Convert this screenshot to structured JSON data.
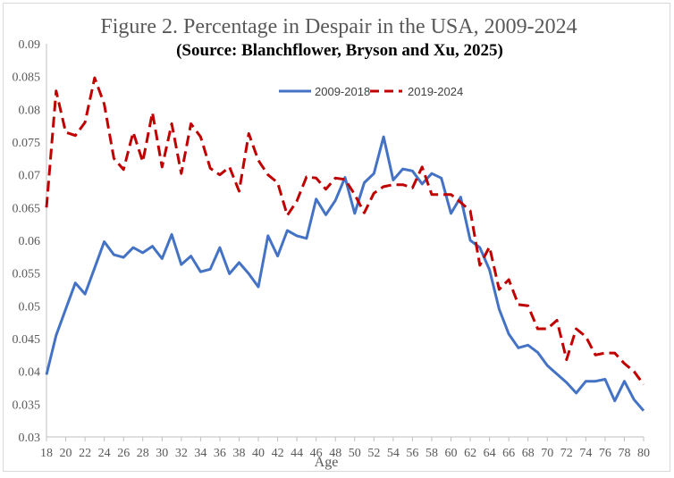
{
  "chart_data": {
    "type": "line",
    "title": "Figure 2.   Percentage in Despair in the USA, 2009-2024",
    "subtitle": "(Source: Blanchflower, Bryson and Xu, 2025)",
    "xlabel": "Age",
    "ylabel": "",
    "ylim": [
      0.03,
      0.09
    ],
    "y_ticks": [
      0.03,
      0.035,
      0.04,
      0.045,
      0.05,
      0.055,
      0.06,
      0.065,
      0.07,
      0.075,
      0.08,
      0.085,
      0.09
    ],
    "y_tick_labels": [
      "0.03",
      "0.035",
      "0.04",
      "0.045",
      "0.05",
      "0.055",
      "0.06",
      "0.065",
      "0.07",
      "0.075",
      "0.08",
      "0.085",
      "0.09"
    ],
    "x_ticks": [
      18,
      20,
      22,
      24,
      26,
      28,
      30,
      32,
      34,
      36,
      38,
      40,
      42,
      44,
      46,
      48,
      50,
      52,
      54,
      56,
      58,
      60,
      62,
      64,
      66,
      68,
      70,
      72,
      74,
      76,
      78,
      80
    ],
    "legend_position": "top",
    "grid": false,
    "x": [
      18,
      19,
      20,
      21,
      22,
      23,
      24,
      25,
      26,
      27,
      28,
      29,
      30,
      31,
      32,
      33,
      34,
      35,
      36,
      37,
      38,
      39,
      40,
      41,
      42,
      43,
      44,
      45,
      46,
      47,
      48,
      49,
      50,
      51,
      52,
      53,
      54,
      55,
      56,
      57,
      58,
      59,
      60,
      61,
      62,
      63,
      64,
      65,
      66,
      67,
      68,
      69,
      70,
      71,
      72,
      73,
      74,
      75,
      76,
      77,
      78,
      79,
      80
    ],
    "series": [
      {
        "name": "2009-2018",
        "color": "#4472c4",
        "style": "solid",
        "values": [
          0.0395,
          0.0455,
          0.0495,
          0.0535,
          0.0518,
          0.0558,
          0.0598,
          0.0578,
          0.0574,
          0.0589,
          0.0581,
          0.0591,
          0.0572,
          0.0609,
          0.0563,
          0.0576,
          0.0552,
          0.0556,
          0.0589,
          0.0549,
          0.0566,
          0.0549,
          0.0529,
          0.0607,
          0.0576,
          0.0615,
          0.0607,
          0.0603,
          0.0663,
          0.0639,
          0.0661,
          0.0696,
          0.0641,
          0.0688,
          0.0702,
          0.0758,
          0.0692,
          0.0709,
          0.0706,
          0.0686,
          0.0702,
          0.0695,
          0.0641,
          0.0666,
          0.06,
          0.0589,
          0.0555,
          0.0495,
          0.0457,
          0.0436,
          0.044,
          0.0429,
          0.0409,
          0.0396,
          0.0383,
          0.0367,
          0.0385,
          0.0385,
          0.0388,
          0.0355,
          0.0385,
          0.0357,
          0.034
        ]
      },
      {
        "name": "2019-2024",
        "color": "#c00000",
        "style": "dashed",
        "values": [
          0.065,
          0.0828,
          0.0765,
          0.076,
          0.078,
          0.0848,
          0.0808,
          0.0725,
          0.0708,
          0.0765,
          0.072,
          0.0795,
          0.0712,
          0.0778,
          0.0702,
          0.0778,
          0.0758,
          0.071,
          0.07,
          0.0712,
          0.0675,
          0.0763,
          0.0722,
          0.07,
          0.0688,
          0.0638,
          0.066,
          0.0697,
          0.0695,
          0.0678,
          0.0695,
          0.0693,
          0.067,
          0.0642,
          0.0672,
          0.0682,
          0.0685,
          0.0685,
          0.068,
          0.0712,
          0.067,
          0.067,
          0.067,
          0.0658,
          0.0645,
          0.0562,
          0.059,
          0.0525,
          0.054,
          0.0502,
          0.05,
          0.0465,
          0.0465,
          0.0478,
          0.0418,
          0.0465,
          0.0453,
          0.0425,
          0.0428,
          0.0428,
          0.0412,
          0.04,
          0.038
        ]
      }
    ]
  }
}
